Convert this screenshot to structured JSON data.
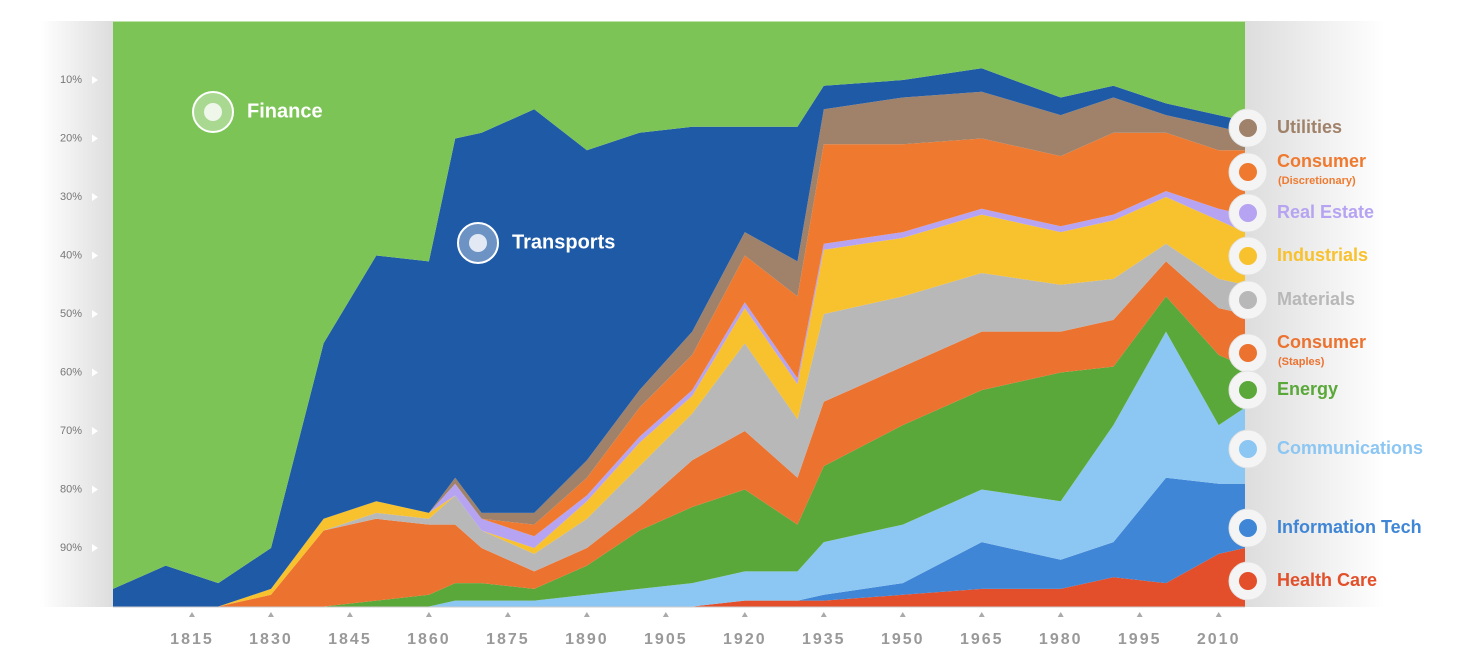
{
  "chart_data": {
    "type": "stacked_area",
    "y_inverted": true,
    "x": [
      1800,
      1810,
      1820,
      1830,
      1840,
      1850,
      1860,
      1865,
      1870,
      1880,
      1890,
      1900,
      1910,
      1920,
      1930,
      1935,
      1950,
      1965,
      1980,
      1990,
      2000,
      2010,
      2015
    ],
    "xlim": [
      1800,
      2015
    ],
    "xticks": [
      1815,
      1830,
      1845,
      1860,
      1875,
      1890,
      1905,
      1920,
      1935,
      1950,
      1965,
      1980,
      1995,
      2010
    ],
    "ylim": [
      0,
      100
    ],
    "yticks": [
      {
        "value": 10,
        "label": "10%"
      },
      {
        "value": 20,
        "label": "20%"
      },
      {
        "value": 30,
        "label": "30%"
      },
      {
        "value": 40,
        "label": "40%"
      },
      {
        "value": 50,
        "label": "50%"
      },
      {
        "value": 60,
        "label": "60%"
      },
      {
        "value": 70,
        "label": "70%"
      },
      {
        "value": 80,
        "label": "80%"
      },
      {
        "value": 90,
        "label": "90%"
      }
    ],
    "series": [
      {
        "name": "Finance",
        "color": "#7cc456",
        "values": [
          97,
          93,
          96,
          90,
          55,
          40,
          41,
          20,
          19,
          15,
          22,
          19,
          18,
          18,
          18,
          11,
          10,
          8,
          13,
          11,
          14,
          16,
          17
        ]
      },
      {
        "name": "Transports",
        "color": "#1f5aa6",
        "values": [
          3,
          7,
          4,
          7,
          30,
          42,
          43,
          58,
          65,
          69,
          53,
          44,
          35,
          18,
          23,
          4,
          3,
          4,
          3,
          2,
          2,
          2,
          2
        ]
      },
      {
        "name": "Utilities",
        "color": "#a0826a",
        "values": [
          0,
          0,
          0,
          0,
          0,
          0,
          0,
          1,
          1,
          2,
          3,
          3,
          4,
          4,
          6,
          6,
          8,
          8,
          7,
          6,
          3,
          4,
          3
        ]
      },
      {
        "name": "Consumer",
        "note": "(Discretionary)",
        "color": "#ef7a2f",
        "values": [
          0,
          0,
          0,
          0,
          0,
          0,
          0,
          0,
          0,
          2,
          3,
          5,
          6,
          8,
          14,
          17,
          15,
          12,
          12,
          14,
          10,
          10,
          11
        ]
      },
      {
        "name": "Real Estate",
        "color": "#b6a3f2",
        "values": [
          0,
          0,
          0,
          0,
          0,
          0,
          0,
          2,
          2,
          2,
          1,
          1,
          1,
          1,
          1,
          1,
          1,
          1,
          1,
          1,
          1,
          2,
          3
        ]
      },
      {
        "name": "Industrials",
        "color": "#f8c12e",
        "values": [
          0,
          0,
          0,
          1,
          2,
          2,
          1,
          0,
          0,
          1,
          3,
          4,
          3,
          6,
          6,
          11,
          10,
          10,
          9,
          10,
          8,
          10,
          9
        ]
      },
      {
        "name": "Materials",
        "color": "#b8b8b8",
        "values": [
          0,
          0,
          0,
          0,
          0,
          1,
          1,
          5,
          3,
          3,
          5,
          7,
          8,
          15,
          10,
          15,
          12,
          10,
          8,
          7,
          3,
          5,
          5
        ]
      },
      {
        "name": "Consumer",
        "note": "(Staples)",
        "color": "#ec7230",
        "values": [
          0,
          0,
          0,
          2,
          13,
          14,
          12,
          10,
          6,
          3,
          3,
          4,
          8,
          10,
          8,
          11,
          10,
          10,
          7,
          8,
          6,
          8,
          9
        ]
      },
      {
        "name": "Energy",
        "color": "#5aa83a",
        "values": [
          0,
          0,
          0,
          0,
          0,
          1,
          2,
          3,
          3,
          2,
          5,
          10,
          13,
          14,
          8,
          13,
          17,
          17,
          22,
          10,
          6,
          12,
          7
        ]
      },
      {
        "name": "Communications",
        "color": "#8cc6f2",
        "values": [
          0,
          0,
          0,
          0,
          0,
          0,
          0,
          1,
          1,
          1,
          2,
          3,
          4,
          5,
          5,
          9,
          10,
          9,
          10,
          20,
          25,
          10,
          13
        ]
      },
      {
        "name": "Information Tech",
        "color": "#3f86d6",
        "values": [
          0,
          0,
          0,
          0,
          0,
          0,
          0,
          0,
          0,
          0,
          0,
          0,
          0,
          0,
          0,
          1,
          2,
          8,
          5,
          6,
          18,
          12,
          11
        ]
      },
      {
        "name": "Health Care",
        "color": "#e24f2a",
        "values": [
          0,
          0,
          0,
          0,
          0,
          0,
          0,
          0,
          0,
          0,
          0,
          0,
          0,
          1,
          1,
          1,
          2,
          3,
          3,
          5,
          4,
          9,
          10
        ]
      }
    ]
  }
}
